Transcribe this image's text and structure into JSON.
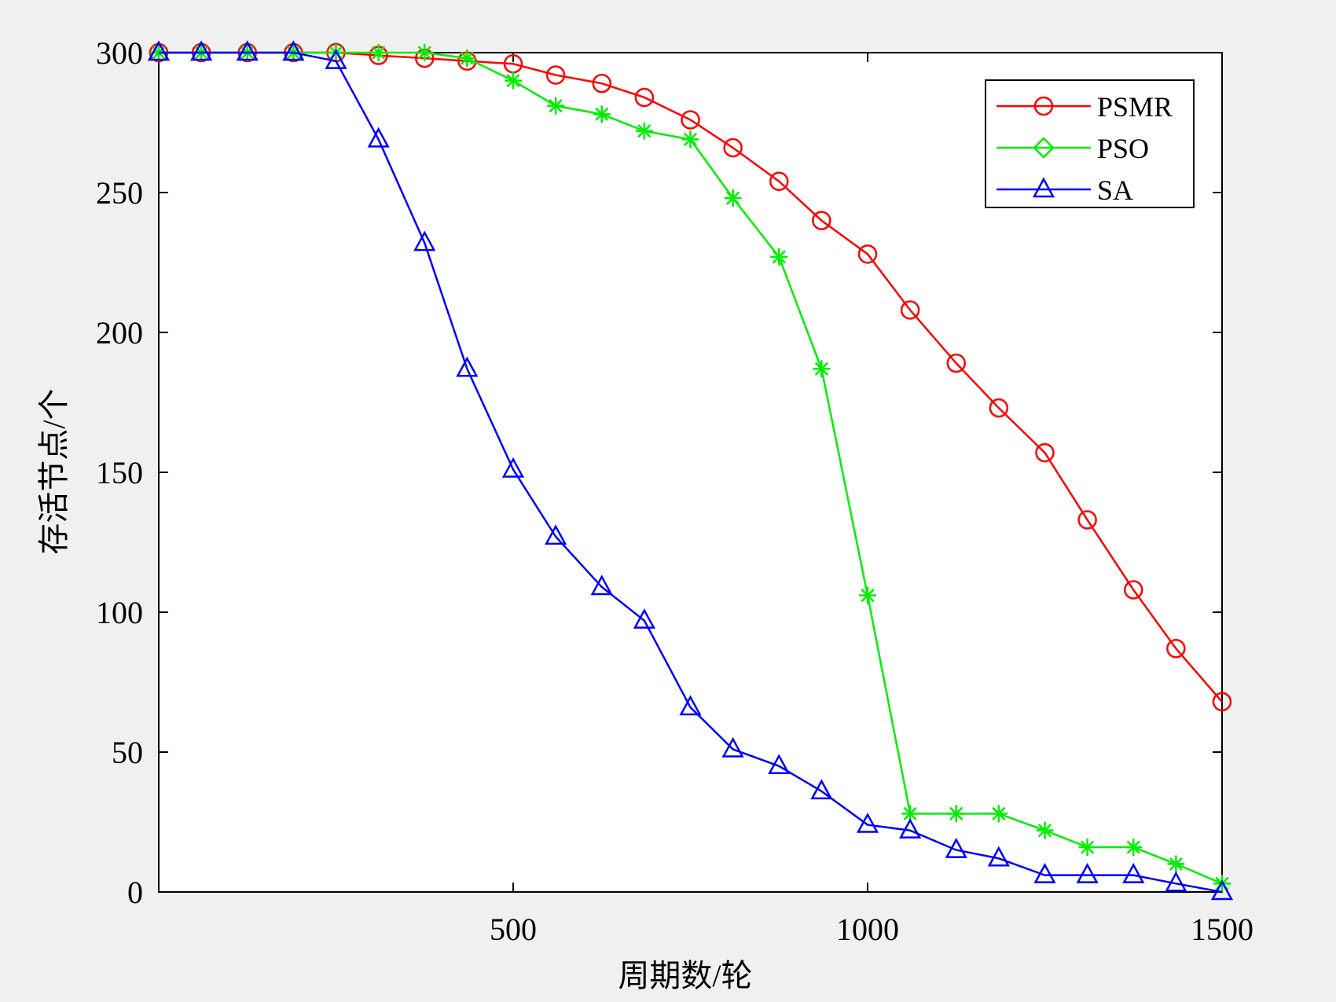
{
  "chart_data": {
    "type": "line",
    "xlabel": "周期数/轮",
    "ylabel": "存活节点/个",
    "xlim": [
      0,
      1500
    ],
    "ylim": [
      0,
      300
    ],
    "xticks": [
      500,
      1000,
      1500
    ],
    "yticks": [
      0,
      50,
      100,
      150,
      200,
      250,
      300
    ],
    "grid": false,
    "legend_position": "top-right",
    "series": [
      {
        "name": "PSMR",
        "color": "#ff0000",
        "marker": "circle",
        "x": [
          0,
          60,
          125,
          190,
          250,
          310,
          375,
          435,
          500,
          560,
          625,
          685,
          750,
          810,
          875,
          935,
          1000,
          1060,
          1125,
          1185,
          1250,
          1310,
          1375,
          1435,
          1500
        ],
        "y": [
          300,
          300,
          300,
          300,
          300,
          299,
          298,
          297,
          296,
          292,
          289,
          284,
          276,
          266,
          254,
          240,
          228,
          208,
          189,
          173,
          157,
          133,
          108,
          87,
          68
        ]
      },
      {
        "name": "PSO",
        "color": "#00ee00",
        "marker": "asterisk",
        "x": [
          0,
          60,
          125,
          190,
          250,
          310,
          375,
          435,
          500,
          560,
          625,
          685,
          750,
          810,
          875,
          935,
          1000,
          1060,
          1125,
          1185,
          1250,
          1310,
          1375,
          1435,
          1500
        ],
        "y": [
          300,
          300,
          300,
          300,
          300,
          300,
          300,
          298,
          290,
          281,
          278,
          272,
          269,
          248,
          227,
          187,
          106,
          28,
          28,
          28,
          22,
          16,
          16,
          10,
          3
        ]
      },
      {
        "name": "SA",
        "color": "#0000ff",
        "marker": "triangle",
        "x": [
          0,
          60,
          125,
          190,
          250,
          310,
          375,
          435,
          500,
          560,
          625,
          685,
          750,
          810,
          875,
          935,
          1000,
          1060,
          1125,
          1185,
          1250,
          1310,
          1375,
          1435,
          1500
        ],
        "y": [
          300,
          300,
          300,
          300,
          297,
          269,
          232,
          187,
          151,
          127,
          109,
          97,
          66,
          51,
          45,
          36,
          24,
          22,
          15,
          12,
          6,
          6,
          6,
          3,
          0
        ]
      }
    ]
  }
}
